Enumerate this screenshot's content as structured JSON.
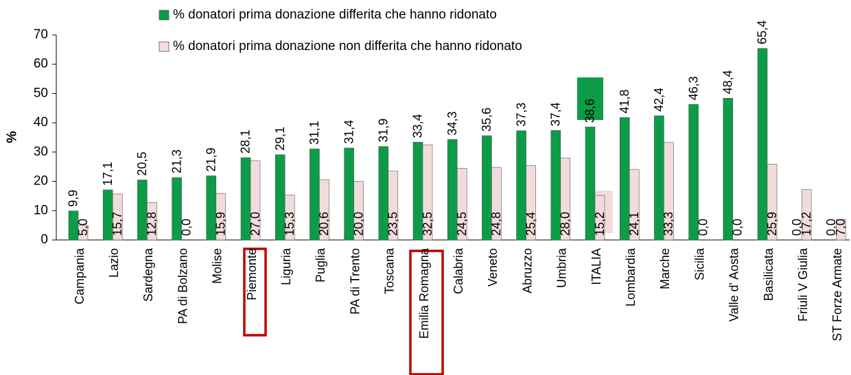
{
  "chart_data": {
    "type": "bar",
    "y_label": "%",
    "categories": [
      "Campania",
      "Lazio",
      "Sardegna",
      "PA di Bolzano",
      "Molise",
      "Piemonte",
      "Liguria",
      "Puglia",
      "PA di Trento",
      "Toscana",
      "Emilia Romagna",
      "Calabria",
      "Veneto",
      "Abruzzo",
      "Umbria",
      "ITALIA",
      "Lombardia",
      "Marche",
      "Sicilia",
      "Valle d' Aosta",
      "Basilicata",
      "Friuli V Giulia",
      "ST Forze Armate"
    ],
    "series": [
      {
        "name": "% donatori prima donazione differita che hanno ridonato",
        "color": "#0c9c48",
        "values": [
          9.9,
          17.1,
          20.5,
          21.3,
          21.9,
          28.1,
          29.1,
          31.1,
          31.4,
          31.9,
          33.4,
          34.3,
          35.6,
          37.3,
          37.4,
          38.6,
          41.8,
          42.4,
          46.3,
          48.4,
          65.4,
          0.0,
          0.0
        ],
        "value_labels": [
          "9,9",
          "17,1",
          "20,5",
          "21,3",
          "21,9",
          "28,1",
          "29,1",
          "31,1",
          "31,4",
          "31,9",
          "33,4",
          "34,3",
          "35,6",
          "37,3",
          "37,4",
          "38,6",
          "41,8",
          "42,4",
          "46,3",
          "48,4",
          "65,4",
          "0,0",
          "0,0"
        ]
      },
      {
        "name": "% donatori prima donazione non differita  che hanno ridonato",
        "color": "#f2dcdb",
        "values": [
          5.0,
          15.7,
          12.8,
          0.0,
          15.9,
          27.0,
          15.3,
          20.6,
          20.0,
          23.5,
          32.5,
          24.5,
          24.8,
          25.4,
          28.0,
          15.2,
          24.1,
          33.3,
          0.0,
          0.0,
          25.9,
          17.2,
          7.0
        ],
        "value_labels": [
          "5,0",
          "15,7",
          "12,8",
          "0,0",
          "15,9",
          "27,0",
          "15,3",
          "20,6",
          "20,0",
          "23,5",
          "32,5",
          "24,5",
          "24,8",
          "25,4",
          "28,0",
          "15,2",
          "24,1",
          "33,3",
          "0,0",
          "0,0",
          "25,9",
          "17,2",
          "7,0"
        ]
      }
    ],
    "ylim": [
      0,
      70
    ],
    "yticks": [
      0,
      10,
      20,
      30,
      40,
      50,
      60,
      70
    ],
    "grid": false
  }
}
